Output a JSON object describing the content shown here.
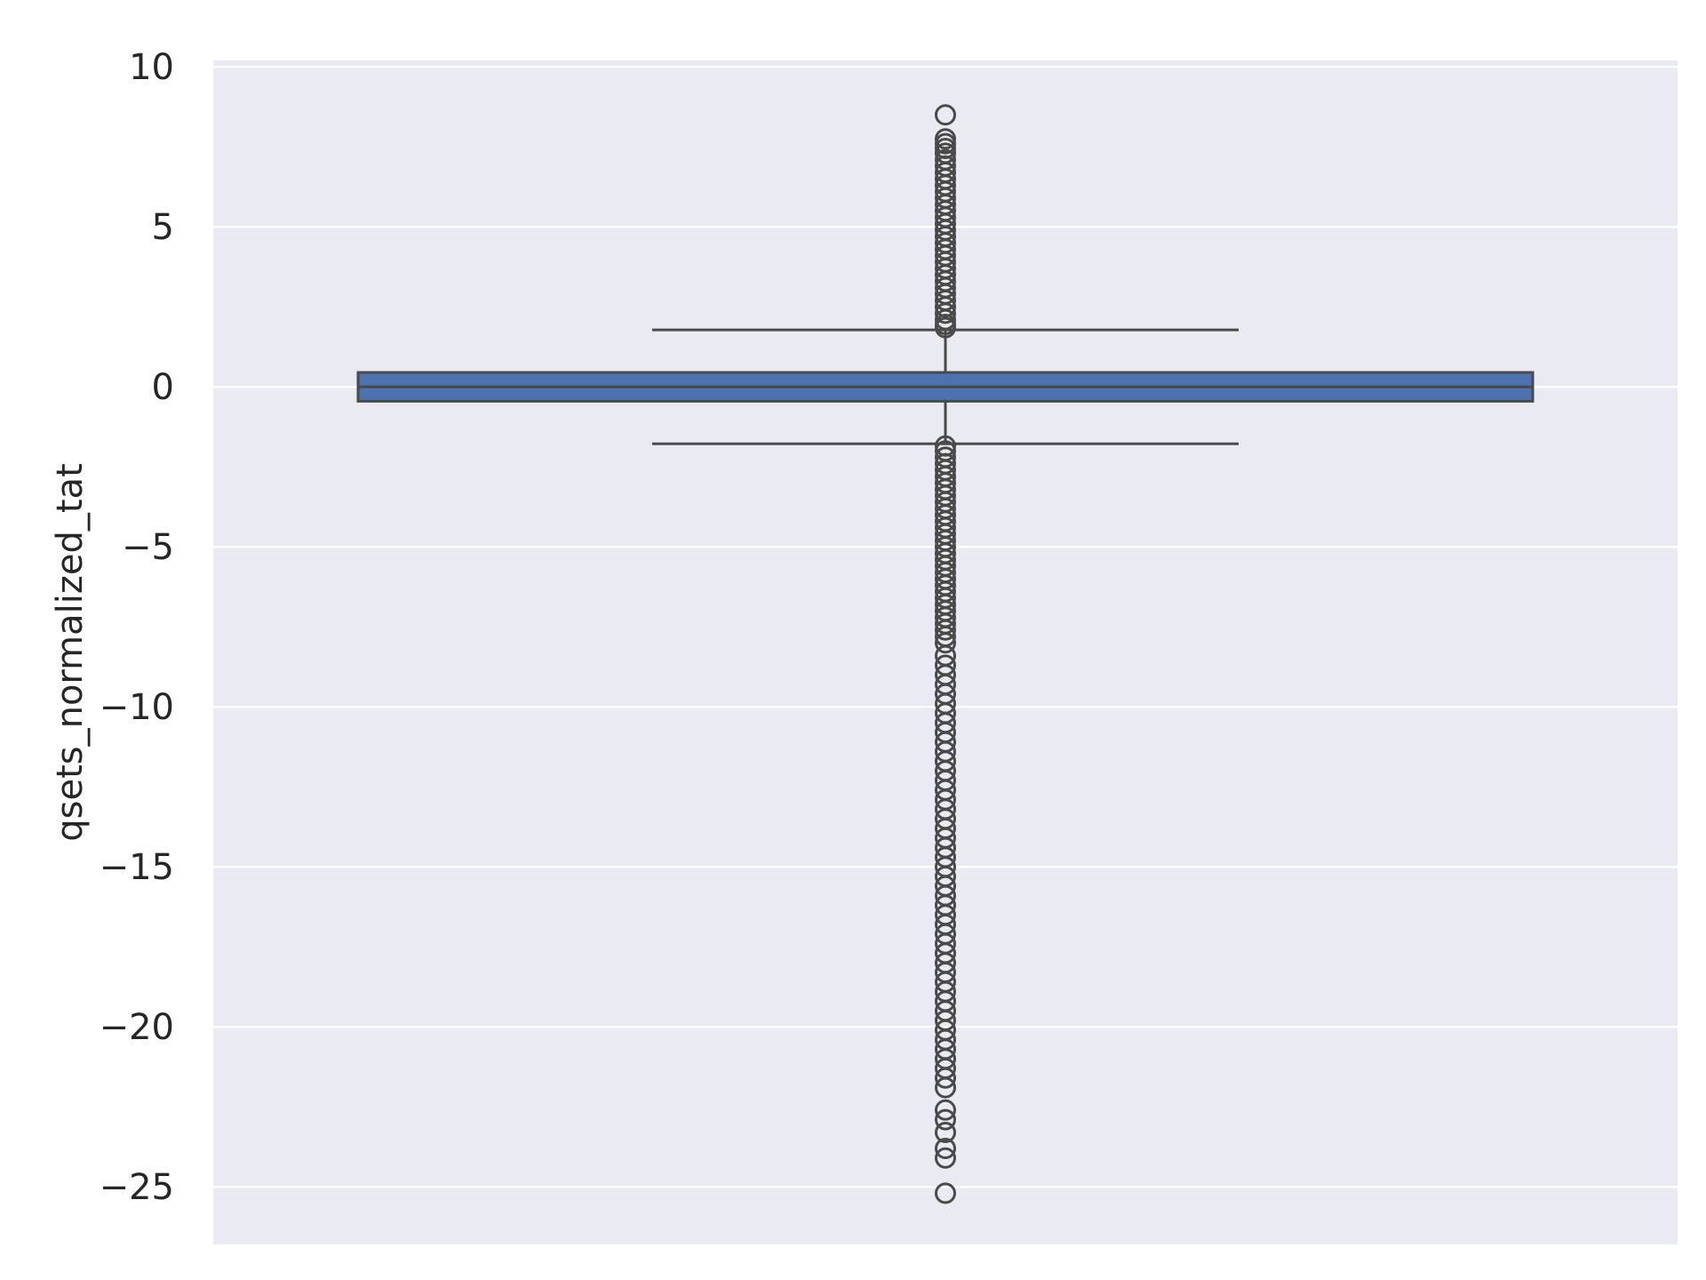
{
  "chart_data": {
    "type": "box",
    "ylabel": "qsets_normalized_tat",
    "xlabel": "",
    "ylim": [
      -26.8,
      10.2
    ],
    "yticks": [
      10,
      5,
      0,
      -5,
      -10,
      -15,
      -20,
      -25
    ],
    "ytick_labels": [
      "10",
      "5",
      "0",
      "−5",
      "−10",
      "−15",
      "−20",
      "−25"
    ],
    "grid": true,
    "box": {
      "q1": -0.45,
      "median": 0.0,
      "q3": 0.45,
      "whisker_low": -1.78,
      "whisker_high": 1.78,
      "fill_color": "#4c72b0",
      "line_color": "#4a4a4a"
    },
    "outliers_high": [
      8.5,
      7.75,
      7.6,
      7.45,
      7.3,
      7.1,
      6.9,
      6.7,
      6.5,
      6.3,
      6.1,
      5.9,
      5.7,
      5.5,
      5.3,
      5.1,
      4.9,
      4.7,
      4.5,
      4.3,
      4.1,
      3.9,
      3.7,
      3.5,
      3.3,
      3.1,
      2.9,
      2.7,
      2.5,
      2.3,
      2.1,
      1.95,
      1.85
    ],
    "outliers_low": [
      -1.85,
      -2.0,
      -2.2,
      -2.4,
      -2.6,
      -2.8,
      -3.0,
      -3.2,
      -3.4,
      -3.6,
      -3.8,
      -4.0,
      -4.2,
      -4.4,
      -4.6,
      -4.8,
      -5.0,
      -5.2,
      -5.4,
      -5.6,
      -5.8,
      -6.0,
      -6.2,
      -6.4,
      -6.6,
      -6.8,
      -7.0,
      -7.2,
      -7.4,
      -7.6,
      -7.8,
      -8.0,
      -8.4,
      -8.7,
      -9.0,
      -9.3,
      -9.6,
      -9.9,
      -10.2,
      -10.5,
      -10.8,
      -11.1,
      -11.4,
      -11.7,
      -12.0,
      -12.3,
      -12.6,
      -12.9,
      -13.2,
      -13.5,
      -13.8,
      -14.1,
      -14.4,
      -14.7,
      -15.0,
      -15.3,
      -15.6,
      -15.9,
      -16.2,
      -16.5,
      -16.8,
      -17.1,
      -17.4,
      -17.7,
      -18.0,
      -18.3,
      -18.6,
      -18.9,
      -19.2,
      -19.5,
      -19.8,
      -20.1,
      -20.4,
      -20.7,
      -21.0,
      -21.3,
      -21.6,
      -21.9,
      -22.6,
      -22.9,
      -23.3,
      -23.8,
      -24.1,
      -25.2
    ]
  }
}
